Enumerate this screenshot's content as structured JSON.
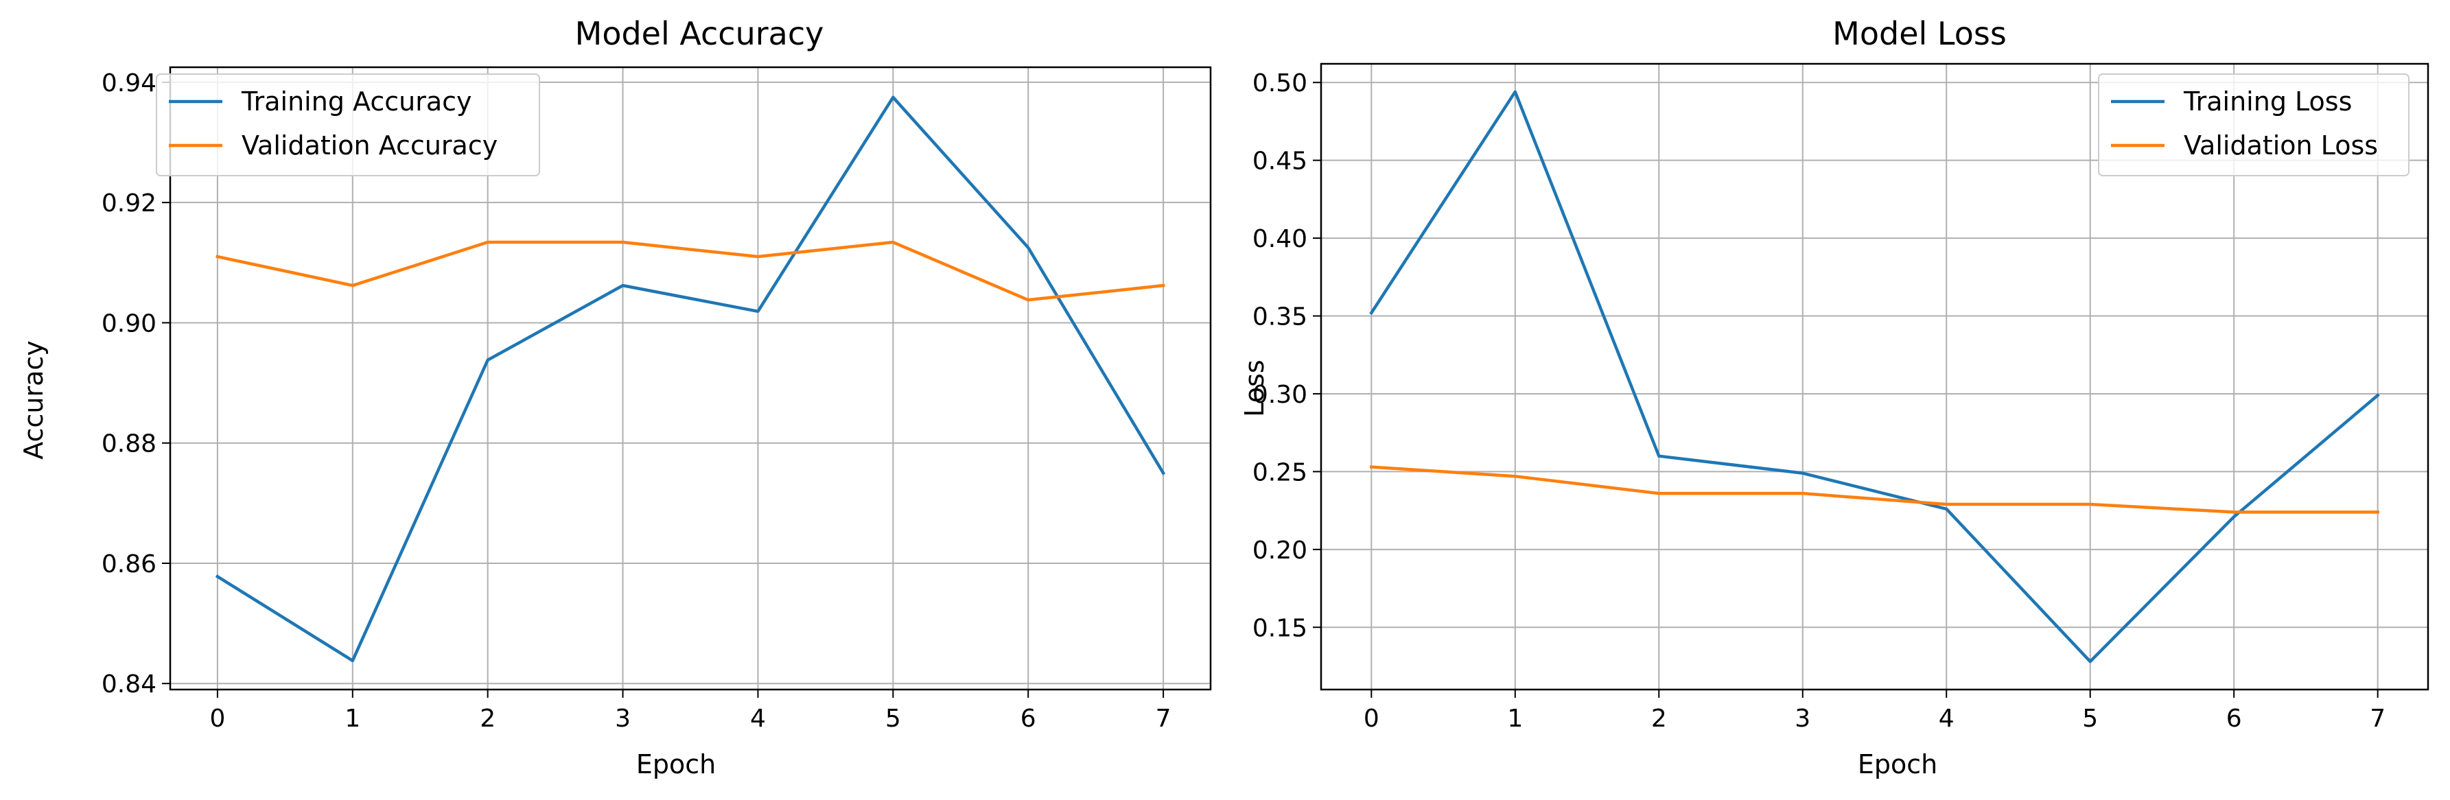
{
  "figure": {
    "background": "#ffffff"
  },
  "colors": {
    "training": "#1f77b4",
    "validation": "#ff7f0e",
    "grid": "#b0b0b0",
    "axis": "#000000",
    "legend_border": "#cccccc"
  },
  "chart_data": [
    {
      "type": "line",
      "title": "Model Accuracy",
      "xlabel": "Epoch",
      "ylabel": "Accuracy",
      "x": [
        0,
        1,
        2,
        3,
        4,
        5,
        6,
        7
      ],
      "xticks": [
        "0",
        "1",
        "2",
        "3",
        "4",
        "5",
        "6",
        "7"
      ],
      "xlim": [
        -0.35,
        7.35
      ],
      "yticks": [
        "0.84",
        "0.86",
        "0.88",
        "0.90",
        "0.92",
        "0.94"
      ],
      "ylim": [
        0.839,
        0.9425
      ],
      "grid": true,
      "legend_position": "upper-left",
      "series": [
        {
          "name": "Training Accuracy",
          "color_key": "training",
          "values": [
            0.8578,
            0.8438,
            0.8938,
            0.9062,
            0.9019,
            0.9375,
            0.9125,
            0.875
          ]
        },
        {
          "name": "Validation Accuracy",
          "color_key": "validation",
          "values": [
            0.911,
            0.9062,
            0.9134,
            0.9134,
            0.911,
            0.9134,
            0.9038,
            0.9062
          ]
        }
      ]
    },
    {
      "type": "line",
      "title": "Model Loss",
      "xlabel": "Epoch",
      "ylabel": "Loss",
      "x": [
        0,
        1,
        2,
        3,
        4,
        5,
        6,
        7
      ],
      "xticks": [
        "0",
        "1",
        "2",
        "3",
        "4",
        "5",
        "6",
        "7"
      ],
      "xlim": [
        -0.35,
        7.35
      ],
      "yticks": [
        "0.15",
        "0.20",
        "0.25",
        "0.30",
        "0.35",
        "0.40",
        "0.45",
        "0.50"
      ],
      "ylim": [
        0.11,
        0.512
      ],
      "grid": true,
      "legend_position": "upper-right",
      "series": [
        {
          "name": "Training Loss",
          "color_key": "training",
          "values": [
            0.352,
            0.494,
            0.26,
            0.249,
            0.226,
            0.128,
            0.221,
            0.299
          ]
        },
        {
          "name": "Validation Loss",
          "color_key": "validation",
          "values": [
            0.253,
            0.247,
            0.236,
            0.236,
            0.229,
            0.229,
            0.224,
            0.224
          ]
        }
      ]
    }
  ]
}
